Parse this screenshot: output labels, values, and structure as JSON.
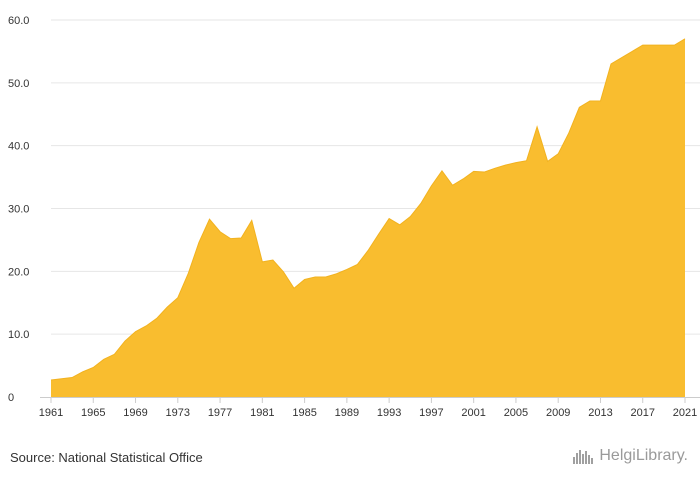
{
  "chart_data": {
    "type": "area",
    "title": "",
    "xlabel": "",
    "ylabel": "",
    "x": [
      1961,
      1962,
      1963,
      1964,
      1965,
      1966,
      1967,
      1968,
      1969,
      1970,
      1971,
      1972,
      1973,
      1974,
      1975,
      1976,
      1977,
      1978,
      1979,
      1980,
      1981,
      1982,
      1983,
      1984,
      1985,
      1986,
      1987,
      1988,
      1989,
      1990,
      1991,
      1992,
      1993,
      1994,
      1995,
      1996,
      1997,
      1998,
      1999,
      2000,
      2001,
      2002,
      2003,
      2004,
      2005,
      2006,
      2007,
      2008,
      2009,
      2010,
      2011,
      2012,
      2013,
      2014,
      2015,
      2016,
      2017,
      2018,
      2019,
      2020,
      2021
    ],
    "values": [
      2.7,
      2.9,
      3.1,
      4.0,
      4.7,
      6.0,
      6.8,
      8.9,
      10.4,
      11.3,
      12.5,
      14.3,
      15.8,
      19.7,
      24.6,
      28.3,
      26.3,
      25.2,
      25.3,
      28.1,
      21.5,
      21.8,
      19.9,
      17.3,
      18.7,
      19.1,
      19.1,
      19.6,
      20.3,
      21.1,
      23.3,
      25.9,
      28.4,
      27.4,
      28.7,
      30.8,
      33.6,
      36.0,
      33.7,
      34.7,
      35.9,
      35.8,
      36.4,
      36.9,
      37.3,
      37.6,
      43.0,
      37.5,
      38.7,
      42.0,
      46.1,
      47.1,
      47.1,
      53.0,
      54.0,
      55.0,
      56.0,
      56.0,
      56.0,
      56.0,
      57.0
    ],
    "x_ticks": [
      "1961",
      "1965",
      "1969",
      "1973",
      "1977",
      "1981",
      "1985",
      "1989",
      "1993",
      "1997",
      "2001",
      "2005",
      "2009",
      "2013",
      "2017",
      "2021"
    ],
    "y_ticks": [
      "0",
      "10.0",
      "20.0",
      "30.0",
      "40.0",
      "50.0",
      "60.0"
    ],
    "ylim": [
      0,
      60
    ],
    "xlim": [
      1961,
      2021
    ],
    "grid": true,
    "legend": "none"
  },
  "colors": {
    "area_fill": "#f9bd2f",
    "grid": "#e6e6e6",
    "axis": "#cccccc",
    "text": "#333333",
    "logo": "#9a9a9a"
  },
  "footer": {
    "source": "Source: National Statistical Office",
    "logo_text": "HelgiLibrary.",
    "logo_icon": "city-skyline-icon"
  }
}
